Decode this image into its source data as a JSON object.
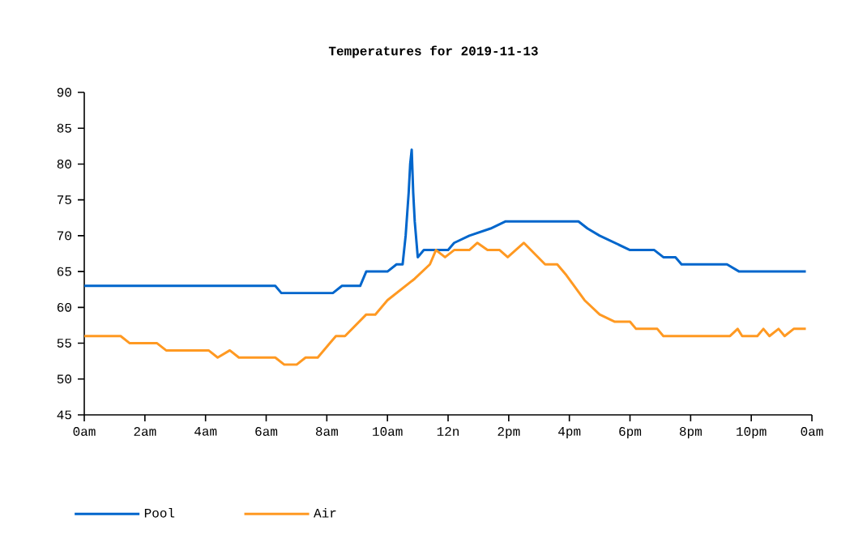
{
  "chart_data": {
    "type": "line",
    "title": "Temperatures for 2019-11-13",
    "xlim": [
      "2019-11-13T00:00",
      "2019-11-14T00:00"
    ],
    "ylim": [
      45,
      90
    ],
    "xticks": [
      {
        "value": "2019-11-13T00:00",
        "label": "0am"
      },
      {
        "value": "2019-11-13T02:00",
        "label": "2am"
      },
      {
        "value": "2019-11-13T04:00",
        "label": "4am"
      },
      {
        "value": "2019-11-13T06:00",
        "label": "6am"
      },
      {
        "value": "2019-11-13T08:00",
        "label": "8am"
      },
      {
        "value": "2019-11-13T10:00",
        "label": "10am"
      },
      {
        "value": "2019-11-13T12:00",
        "label": "12n"
      },
      {
        "value": "2019-11-13T14:00",
        "label": "2pm"
      },
      {
        "value": "2019-11-13T16:00",
        "label": "4pm"
      },
      {
        "value": "2019-11-13T18:00",
        "label": "6pm"
      },
      {
        "value": "2019-11-13T20:00",
        "label": "8pm"
      },
      {
        "value": "2019-11-13T22:00",
        "label": "10pm"
      },
      {
        "value": "2019-11-14T00:00",
        "label": "0am"
      }
    ],
    "yticks": [
      45,
      50,
      55,
      60,
      65,
      70,
      75,
      80,
      85,
      90
    ],
    "grid": false,
    "legend": "bottom left",
    "marker": "none",
    "line_style": "solid",
    "series": [
      {
        "name": "Pool",
        "color": "#0066cc",
        "x": [
          "2019-11-13T00:00",
          "2019-11-13T06:18",
          "2019-11-13T06:30",
          "2019-11-13T08:12",
          "2019-11-13T08:30",
          "2019-11-13T09:06",
          "2019-11-13T09:18",
          "2019-11-13T10:00",
          "2019-11-13T10:18",
          "2019-11-13T10:30",
          "2019-11-13T10:36",
          "2019-11-13T10:42",
          "2019-11-13T10:45",
          "2019-11-13T10:48",
          "2019-11-13T10:51",
          "2019-11-13T10:54",
          "2019-11-13T11:00",
          "2019-11-13T11:12",
          "2019-11-13T12:00",
          "2019-11-13T12:12",
          "2019-11-13T12:42",
          "2019-11-13T13:24",
          "2019-11-13T13:54",
          "2019-11-13T16:18",
          "2019-11-13T16:36",
          "2019-11-13T17:00",
          "2019-11-13T17:30",
          "2019-11-13T18:00",
          "2019-11-13T18:48",
          "2019-11-13T19:06",
          "2019-11-13T19:30",
          "2019-11-13T19:42",
          "2019-11-13T21:12",
          "2019-11-13T21:36",
          "2019-11-13T23:48"
        ],
        "values": [
          63,
          63,
          62,
          62,
          63,
          63,
          65,
          65,
          66,
          66,
          70,
          76,
          80,
          82,
          76,
          72,
          67,
          68,
          68,
          69,
          70,
          71,
          72,
          72,
          71,
          70,
          69,
          68,
          68,
          67,
          67,
          66,
          66,
          65,
          65
        ]
      },
      {
        "name": "Air",
        "color": "#ff9922",
        "x": [
          "2019-11-13T00:00",
          "2019-11-13T01:12",
          "2019-11-13T01:30",
          "2019-11-13T02:24",
          "2019-11-13T02:42",
          "2019-11-13T04:06",
          "2019-11-13T04:24",
          "2019-11-13T04:48",
          "2019-11-13T05:06",
          "2019-11-13T06:18",
          "2019-11-13T06:36",
          "2019-11-13T07:00",
          "2019-11-13T07:18",
          "2019-11-13T07:42",
          "2019-11-13T08:06",
          "2019-11-13T08:18",
          "2019-11-13T08:36",
          "2019-11-13T09:18",
          "2019-11-13T09:36",
          "2019-11-13T10:00",
          "2019-11-13T10:54",
          "2019-11-13T11:24",
          "2019-11-13T11:36",
          "2019-11-13T11:54",
          "2019-11-13T12:12",
          "2019-11-13T12:42",
          "2019-11-13T12:58",
          "2019-11-13T13:18",
          "2019-11-13T13:42",
          "2019-11-13T13:58",
          "2019-11-13T14:30",
          "2019-11-13T15:12",
          "2019-11-13T15:36",
          "2019-11-13T15:54",
          "2019-11-13T16:30",
          "2019-11-13T17:00",
          "2019-11-13T17:30",
          "2019-11-13T18:00",
          "2019-11-13T18:12",
          "2019-11-13T18:54",
          "2019-11-13T19:06",
          "2019-11-13T21:18",
          "2019-11-13T21:33",
          "2019-11-13T21:42",
          "2019-11-13T22:12",
          "2019-11-13T22:24",
          "2019-11-13T22:36",
          "2019-11-13T22:54",
          "2019-11-13T23:06",
          "2019-11-13T23:24",
          "2019-11-13T23:48"
        ],
        "values": [
          56,
          56,
          55,
          55,
          54,
          54,
          53,
          54,
          53,
          53,
          52,
          52,
          53,
          53,
          55,
          56,
          56,
          59,
          59,
          61,
          64,
          66,
          68,
          67,
          68,
          68,
          69,
          68,
          68,
          67,
          69,
          66,
          66,
          64.5,
          61,
          59,
          58,
          58,
          57,
          57,
          56,
          56,
          57,
          56,
          56,
          57,
          56,
          57,
          56,
          57,
          57
        ]
      }
    ]
  }
}
